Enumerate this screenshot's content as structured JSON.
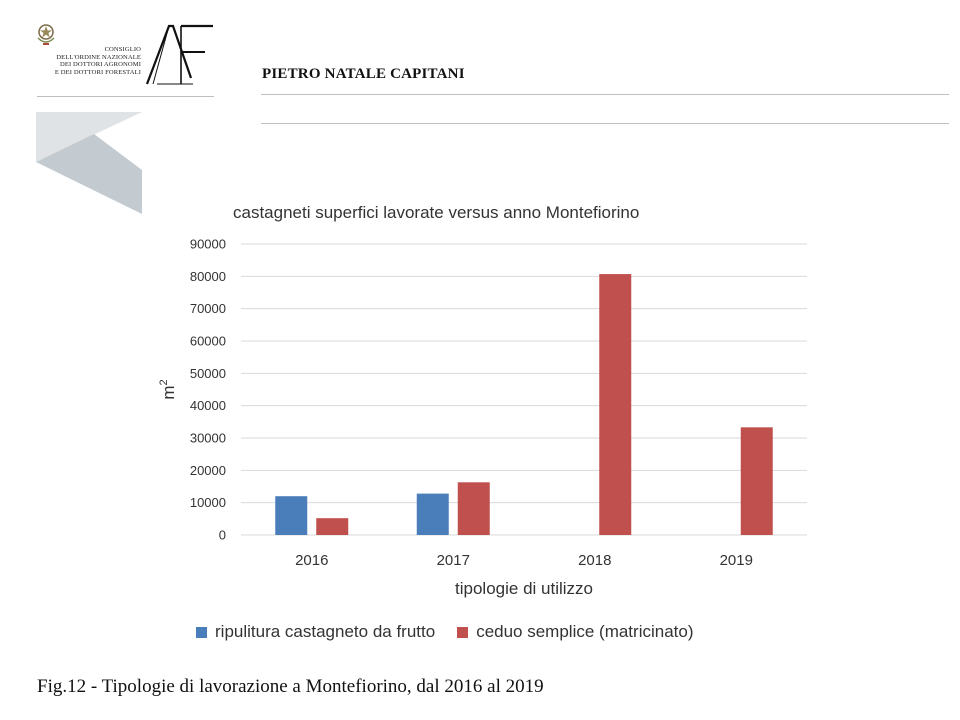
{
  "header": {
    "council_lines": [
      "CONSIGLIO",
      "DELL'ORDINE NAZIONALE",
      "DEI DOTTORI AGRONOMI",
      "E DEI DOTTORI FORESTALI"
    ],
    "logo_mark": "AF",
    "author": "PIETRO NATALE CAPITANI"
  },
  "colors": {
    "series1": "#4a7ebb",
    "series2": "#c0504d",
    "grid": "#d9d9d9",
    "chevron_light": "#dfe3e6",
    "chevron_dark": "#c3cbd0"
  },
  "chart_data": {
    "type": "bar",
    "title": "castagneti superfici lavorate versus anno Montefiorino",
    "xlabel": "tipologie di utilizzo",
    "ylabel": "m",
    "ylabel_sup": "2",
    "categories": [
      "2016",
      "2017",
      "2018",
      "2019"
    ],
    "ylim": [
      0,
      90000
    ],
    "yticks": [
      0,
      10000,
      20000,
      30000,
      40000,
      50000,
      60000,
      70000,
      80000,
      90000
    ],
    "grid": true,
    "legend_position": "bottom",
    "series": [
      {
        "name": "ripulitura castagneto da frutto",
        "values": [
          12000,
          12800,
          0,
          0
        ]
      },
      {
        "name": "ceduo semplice (matricinato)",
        "values": [
          5200,
          16300,
          80700,
          33300
        ]
      }
    ]
  },
  "caption": "Fig.12 - Tipologie di lavorazione a Montefiorino, dal 2016 al 2019"
}
